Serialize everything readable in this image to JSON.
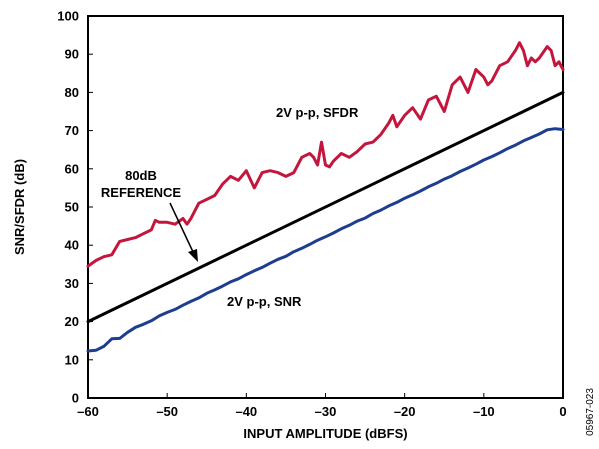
{
  "chart_data": {
    "type": "line",
    "title": "",
    "xlabel": "INPUT AMPLITUDE (dBFS)",
    "ylabel": "SNR/SFDR (dB)",
    "xlim": [
      -60,
      0
    ],
    "ylim": [
      0,
      100
    ],
    "x_ticks": [
      "–60",
      "–50",
      "–40",
      "–30",
      "–20",
      "–10",
      "0"
    ],
    "y_ticks": [
      "0",
      "10",
      "20",
      "30",
      "40",
      "50",
      "60",
      "70",
      "80",
      "90",
      "100"
    ],
    "grid": false,
    "series": [
      {
        "name": "2V p-p, SFDR",
        "color": "#c4163c",
        "x": [
          -60,
          -59,
          -58,
          -57,
          -56,
          -55,
          -54,
          -53,
          -52,
          -51.5,
          -51,
          -50,
          -49,
          -48,
          -47.5,
          -47,
          -46,
          -45,
          -44,
          -43,
          -42,
          -41,
          -40,
          -39,
          -38,
          -37,
          -36,
          -35,
          -34,
          -33,
          -32,
          -31.5,
          -31,
          -30.5,
          -30,
          -29.5,
          -29,
          -28,
          -27,
          -26,
          -25,
          -24,
          -23,
          -22,
          -21.5,
          -21,
          -20,
          -19,
          -18,
          -17,
          -16,
          -15,
          -14,
          -13,
          -12,
          -11,
          -10,
          -9.5,
          -9,
          -8,
          -7,
          -6,
          -5.5,
          -5,
          -4.5,
          -4,
          -3.5,
          -3,
          -2,
          -1.5,
          -1,
          -0.5,
          0
        ],
        "values": [
          34.5,
          36,
          37,
          37.5,
          41,
          41.5,
          42,
          43,
          44,
          46.5,
          46,
          46,
          45.5,
          47,
          45.5,
          47,
          51,
          52,
          53,
          56,
          58,
          57,
          59.5,
          55,
          59,
          59.5,
          59,
          58,
          59,
          63,
          64,
          63,
          61,
          67,
          61,
          60.5,
          62,
          64,
          63,
          64.5,
          66.5,
          67,
          69,
          72,
          74,
          71,
          74,
          76,
          73,
          78,
          79,
          75,
          82,
          84,
          80,
          86,
          84,
          82,
          83,
          87,
          88,
          91,
          93,
          91,
          87,
          89,
          88,
          89,
          92,
          91,
          87,
          88,
          86
        ]
      },
      {
        "name": "2V p-p, SNR",
        "color": "#1d3d8e",
        "x": [
          -60,
          -59,
          -58,
          -57,
          -56,
          -55,
          -54,
          -53,
          -52,
          -51,
          -50,
          -49,
          -48,
          -47,
          -46,
          -45,
          -44,
          -43,
          -42,
          -41,
          -40,
          -39,
          -38,
          -37,
          -36,
          -35,
          -34,
          -33,
          -32,
          -31,
          -30,
          -29,
          -28,
          -27,
          -26,
          -25,
          -24,
          -23,
          -22,
          -21,
          -20,
          -19,
          -18,
          -17,
          -16,
          -15,
          -14,
          -13,
          -12,
          -11,
          -10,
          -9,
          -8,
          -7,
          -6,
          -5,
          -4,
          -3,
          -2,
          -1,
          0
        ],
        "values": [
          12.3,
          12.5,
          13.5,
          15.5,
          15.6,
          17.2,
          18.5,
          19.3,
          20.2,
          21.5,
          22.4,
          23.2,
          24.3,
          25.3,
          26.2,
          27.4,
          28.3,
          29.3,
          30.4,
          31.2,
          32.3,
          33.3,
          34.2,
          35.3,
          36.3,
          37.1,
          38.3,
          39.2,
          40.2,
          41.3,
          42.2,
          43.2,
          44.3,
          45.2,
          46.3,
          47.1,
          48.3,
          49.2,
          50.3,
          51.2,
          52.3,
          53.2,
          54.2,
          55.3,
          56.2,
          57.3,
          58.2,
          59.3,
          60.2,
          61.2,
          62.3,
          63.2,
          64.2,
          65.3,
          66.2,
          67.3,
          68.2,
          69.1,
          70.2,
          70.5,
          70.3
        ]
      },
      {
        "name": "80dB REFERENCE",
        "color": "#000000",
        "x": [
          -60,
          0
        ],
        "values": [
          20,
          80
        ]
      }
    ],
    "annotations": [
      {
        "text": "2V p-p, SFDR"
      },
      {
        "text": "2V p-p, SNR"
      },
      {
        "text": "80dB"
      },
      {
        "text": "REFERENCE"
      }
    ],
    "figure_id": "05967-023"
  }
}
